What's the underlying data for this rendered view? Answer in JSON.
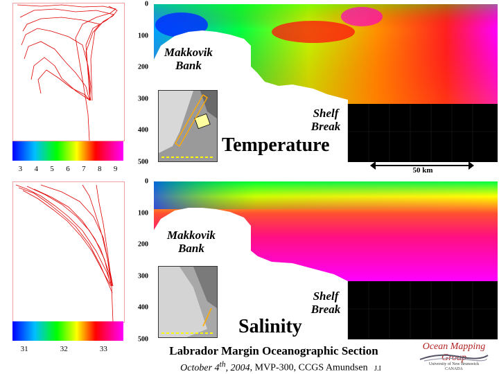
{
  "chart_data": [
    {
      "type": "heatmap",
      "title": "Temperature",
      "annotations": [
        "Makkovik",
        "Bank",
        "Shelf",
        "Break"
      ],
      "ylabel": "",
      "y_ticks": [
        0,
        100,
        200,
        300,
        400,
        500
      ],
      "ylim": [
        500,
        0
      ],
      "scale_bar": "50 km",
      "colorbar": {
        "ticks": [
          3,
          4,
          5,
          6,
          7,
          8,
          9
        ],
        "range": [
          2.5,
          9.5
        ]
      },
      "colors": {
        "low": "#0000ff",
        "mid": "#00ff00",
        "high": "#ff00ff"
      }
    },
    {
      "type": "heatmap",
      "title": "Salinity",
      "annotations": [
        "Makkovik",
        "Bank",
        "Shelf",
        "Break"
      ],
      "ylabel": "",
      "y_ticks": [
        0,
        100,
        200,
        300,
        400,
        500
      ],
      "ylim": [
        500,
        0
      ],
      "colorbar": {
        "ticks": [
          31,
          32,
          33
        ],
        "range": [
          30.7,
          33.5
        ]
      },
      "colors": {
        "low": "#0000ff",
        "mid": "#00ff00",
        "high": "#ff00ff"
      }
    }
  ],
  "caption": {
    "title": "Labrador Margin Oceanographic Section",
    "date_pre": "October 4",
    "date_sup": "th",
    "date_post": ", 2004",
    "rest": ", MVP-300, CCGS Amundsen",
    "initials": "J.I"
  },
  "logo": {
    "name": "Ocean Mapping Group",
    "institution": "University of New Brunswick",
    "country": "CANADA"
  }
}
